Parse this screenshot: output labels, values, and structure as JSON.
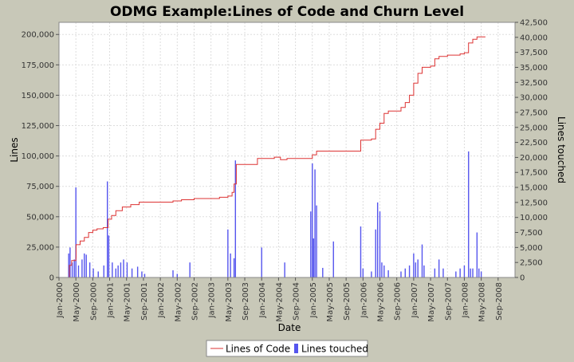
{
  "chart_data": {
    "type": "line",
    "title": "ODMG Example:Lines of Code and Churn Level",
    "xlabel": "Date",
    "ylabel_left": "Lines",
    "ylabel_right": "Lines touched",
    "grid": true,
    "legend_position": "bottom-center",
    "x_tick_labels": [
      "Jan-2000",
      "May-2000",
      "Sep-2000",
      "Jan-2001",
      "May-2001",
      "Sep-2001",
      "Jan-2002",
      "May-2002",
      "Sep-2002",
      "Jan-2003",
      "May-2003",
      "Sep-2003",
      "Jan-2004",
      "May-2004",
      "Sep-2004",
      "Jan-2005",
      "May-2005",
      "Sep-2005",
      "Jan-2006",
      "May-2006",
      "Sep-2006",
      "Jan-2007",
      "May-2007",
      "Sep-2007",
      "Jan-2008",
      "May-2008",
      "Sep-2008"
    ],
    "x_range": [
      "2000-01",
      "2008-12"
    ],
    "y_left": {
      "ylim": [
        0,
        210000
      ],
      "ticks": [
        0,
        25000,
        50000,
        75000,
        100000,
        125000,
        150000,
        175000,
        200000
      ],
      "tick_labels": [
        "0",
        "25,000",
        "50,000",
        "75,000",
        "100,000",
        "125,000",
        "150,000",
        "175,000",
        "200,000"
      ]
    },
    "y_right": {
      "ylim": [
        0,
        42500
      ],
      "ticks": [
        0,
        2500,
        5000,
        7500,
        10000,
        12500,
        15000,
        17500,
        20000,
        22500,
        25000,
        27500,
        30000,
        32500,
        35000,
        37500,
        40000,
        42500
      ],
      "tick_labels": [
        "0",
        "2,500",
        "5,000",
        "7,500",
        "10,000",
        "12,500",
        "15,000",
        "17,500",
        "20,000",
        "22,500",
        "25,000",
        "27,500",
        "30,000",
        "32,500",
        "35,000",
        "37,500",
        "40,000",
        "42,500"
      ]
    },
    "series": [
      {
        "name": "Lines of Code",
        "color": "#dd3333",
        "axis": "left",
        "style": "step",
        "points": [
          [
            "2000-03-10",
            0
          ],
          [
            "2000-03-15",
            10000
          ],
          [
            "2000-04-01",
            14000
          ],
          [
            "2000-05-01",
            16000
          ],
          [
            "2000-05-02",
            27000
          ],
          [
            "2000-06-01",
            30000
          ],
          [
            "2000-07-01",
            33000
          ],
          [
            "2000-08-01",
            37000
          ],
          [
            "2000-09-01",
            39000
          ],
          [
            "2000-10-01",
            40000
          ],
          [
            "2000-11-15",
            41000
          ],
          [
            "2000-12-20",
            48000
          ],
          [
            "2001-01-15",
            51000
          ],
          [
            "2001-02-15",
            55000
          ],
          [
            "2001-04-01",
            58000
          ],
          [
            "2001-06-01",
            60000
          ],
          [
            "2001-08-01",
            62000
          ],
          [
            "2001-12-01",
            62000
          ],
          [
            "2002-01-01",
            62000
          ],
          [
            "2002-04-01",
            63000
          ],
          [
            "2002-06-01",
            64000
          ],
          [
            "2002-09-01",
            65000
          ],
          [
            "2002-12-01",
            65000
          ],
          [
            "2003-03-01",
            66000
          ],
          [
            "2003-05-01",
            67000
          ],
          [
            "2003-06-01",
            70000
          ],
          [
            "2003-06-15",
            77000
          ],
          [
            "2003-07-01",
            93000
          ],
          [
            "2003-11-01",
            93000
          ],
          [
            "2003-12-01",
            98000
          ],
          [
            "2004-04-01",
            99000
          ],
          [
            "2004-05-15",
            97000
          ],
          [
            "2004-07-01",
            98000
          ],
          [
            "2004-12-20",
            98000
          ],
          [
            "2005-01-01",
            101000
          ],
          [
            "2005-02-01",
            104000
          ],
          [
            "2005-12-01",
            104000
          ],
          [
            "2005-12-15",
            113000
          ],
          [
            "2006-03-01",
            114000
          ],
          [
            "2006-04-01",
            122000
          ],
          [
            "2006-05-01",
            127000
          ],
          [
            "2006-06-01",
            135000
          ],
          [
            "2006-07-01",
            137000
          ],
          [
            "2006-09-01",
            137000
          ],
          [
            "2006-10-01",
            140000
          ],
          [
            "2006-11-01",
            144000
          ],
          [
            "2006-12-01",
            150000
          ],
          [
            "2007-01-01",
            160000
          ],
          [
            "2007-02-01",
            168000
          ],
          [
            "2007-03-01",
            173000
          ],
          [
            "2007-05-01",
            174000
          ],
          [
            "2007-06-01",
            180000
          ],
          [
            "2007-07-01",
            182000
          ],
          [
            "2007-09-01",
            183000
          ],
          [
            "2007-12-01",
            184000
          ],
          [
            "2008-01-01",
            185000
          ],
          [
            "2008-02-01",
            193000
          ],
          [
            "2008-03-01",
            196000
          ],
          [
            "2008-04-01",
            198000
          ],
          [
            "2008-06-01",
            198000
          ]
        ]
      },
      {
        "name": "Lines touched",
        "color": "#5555ee",
        "axis": "right",
        "style": "spikes",
        "points": [
          [
            "2000-03-10",
            4000
          ],
          [
            "2000-03-20",
            5000
          ],
          [
            "2000-04-05",
            2500
          ],
          [
            "2000-04-20",
            3000
          ],
          [
            "2000-05-01",
            15000
          ],
          [
            "2000-05-20",
            2000
          ],
          [
            "2000-06-15",
            3000
          ],
          [
            "2000-07-01",
            4000
          ],
          [
            "2000-07-15",
            3800
          ],
          [
            "2000-08-10",
            2500
          ],
          [
            "2000-09-05",
            1500
          ],
          [
            "2000-10-10",
            1000
          ],
          [
            "2000-11-20",
            2000
          ],
          [
            "2000-12-15",
            16000
          ],
          [
            "2000-12-25",
            7000
          ],
          [
            "2001-01-20",
            2500
          ],
          [
            "2001-02-15",
            1500
          ],
          [
            "2001-03-01",
            2000
          ],
          [
            "2001-03-20",
            2500
          ],
          [
            "2001-04-10",
            3000
          ],
          [
            "2001-05-05",
            2500
          ],
          [
            "2001-06-10",
            1500
          ],
          [
            "2001-07-20",
            1800
          ],
          [
            "2001-08-20",
            1000
          ],
          [
            "2001-09-10",
            600
          ],
          [
            "2002-04-01",
            1200
          ],
          [
            "2002-05-01",
            600
          ],
          [
            "2002-08-01",
            2500
          ],
          [
            "2003-05-01",
            8000
          ],
          [
            "2003-05-20",
            4000
          ],
          [
            "2003-06-15",
            3200
          ],
          [
            "2003-06-25",
            19500
          ],
          [
            "2004-01-01",
            5000
          ],
          [
            "2004-06-15",
            2500
          ],
          [
            "2004-12-20",
            11000
          ],
          [
            "2005-01-01",
            19000
          ],
          [
            "2005-01-10",
            6500
          ],
          [
            "2005-01-20",
            18000
          ],
          [
            "2005-02-01",
            12000
          ],
          [
            "2005-03-15",
            1600
          ],
          [
            "2005-06-01",
            6000
          ],
          [
            "2005-12-15",
            8500
          ],
          [
            "2006-01-01",
            1500
          ],
          [
            "2006-03-01",
            1000
          ],
          [
            "2006-04-01",
            8000
          ],
          [
            "2006-04-15",
            12500
          ],
          [
            "2006-05-01",
            11000
          ],
          [
            "2006-05-15",
            2500
          ],
          [
            "2006-06-01",
            2000
          ],
          [
            "2006-07-01",
            1200
          ],
          [
            "2006-10-01",
            1000
          ],
          [
            "2006-11-01",
            1500
          ],
          [
            "2006-12-01",
            2000
          ],
          [
            "2007-01-01",
            4000
          ],
          [
            "2007-01-15",
            2500
          ],
          [
            "2007-02-01",
            3000
          ],
          [
            "2007-03-01",
            5500
          ],
          [
            "2007-03-15",
            2000
          ],
          [
            "2007-06-01",
            1500
          ],
          [
            "2007-07-01",
            3000
          ],
          [
            "2007-08-01",
            1500
          ],
          [
            "2007-11-01",
            1000
          ],
          [
            "2007-12-01",
            1500
          ],
          [
            "2008-01-01",
            2000
          ],
          [
            "2008-02-01",
            21000
          ],
          [
            "2008-02-15",
            1500
          ],
          [
            "2008-03-01",
            1500
          ],
          [
            "2008-04-01",
            7500
          ],
          [
            "2008-04-15",
            1500
          ],
          [
            "2008-05-01",
            1000
          ]
        ]
      }
    ]
  }
}
